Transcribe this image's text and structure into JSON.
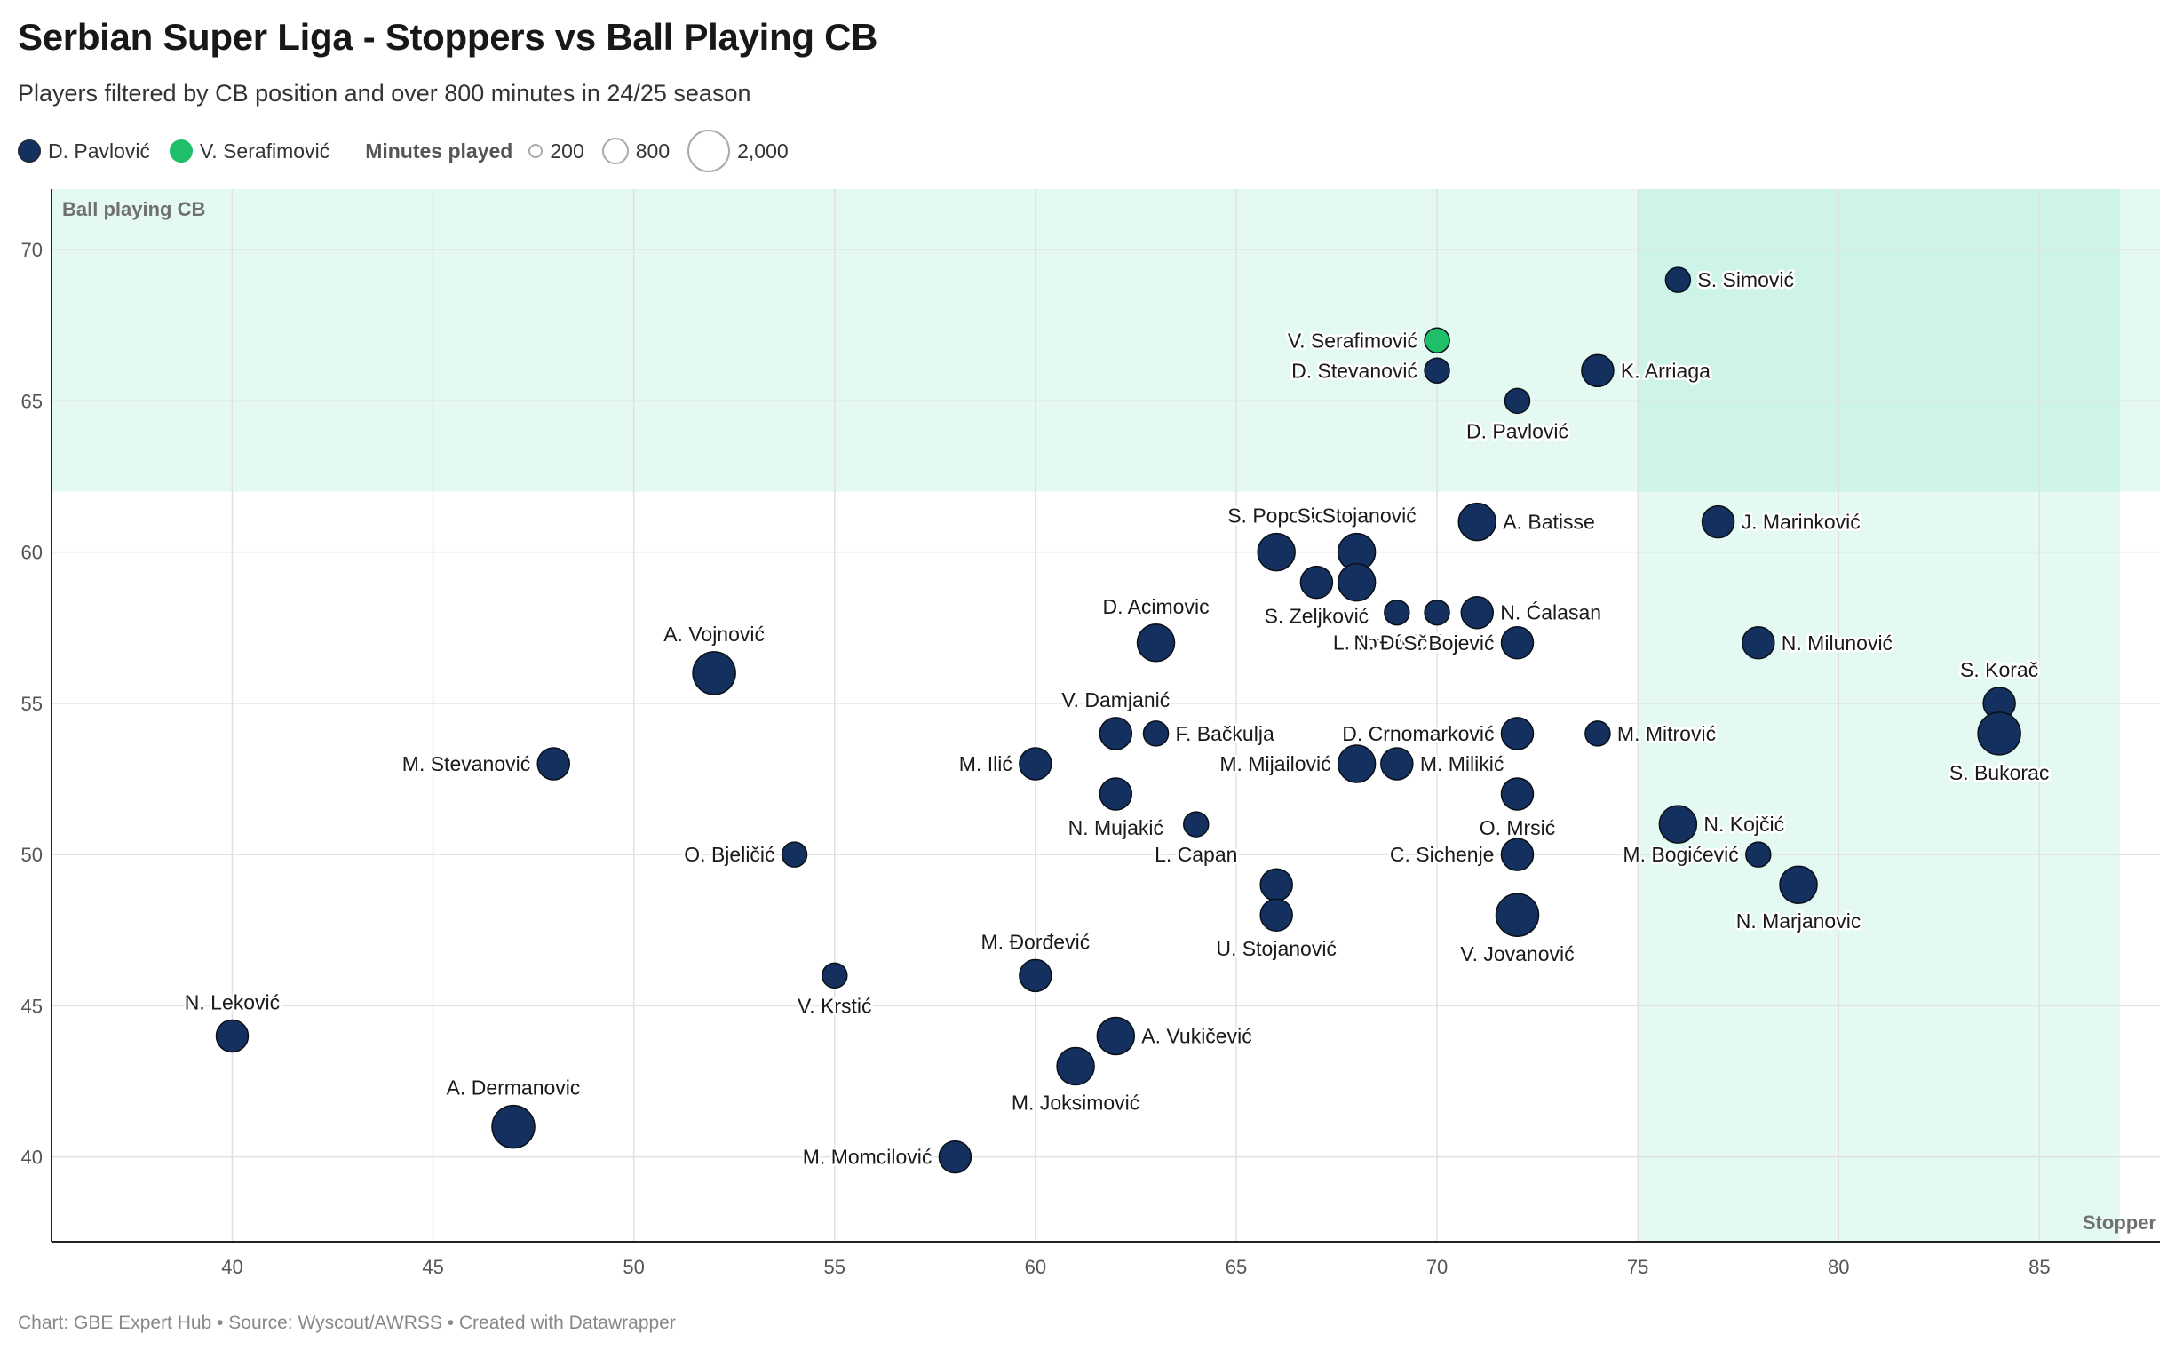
{
  "title": "Serbian Super Liga - Stoppers vs Ball Playing CB",
  "subtitle": "Players filtered by CB position and over 800 minutes in 24/25 season",
  "legend": {
    "players": [
      {
        "name": "D. Pavlović",
        "color": "#13305e"
      },
      {
        "name": "V. Serafimović",
        "color": "#1fbf6a"
      }
    ],
    "size_title": "Minutes played",
    "sizes": [
      {
        "label": "200",
        "minutes": 200
      },
      {
        "label": "800",
        "minutes": 800
      },
      {
        "label": "2,000",
        "minutes": 2000
      }
    ]
  },
  "footer": "Chart: GBE Expert Hub • Source: Wyscout/AWRSS • Created with Datawrapper",
  "chart_data": {
    "type": "scatter",
    "xlabel": "",
    "ylabel": "",
    "xlim": [
      35.5,
      88
    ],
    "ylim": [
      37.2,
      72
    ],
    "xticks": [
      40,
      45,
      50,
      55,
      60,
      65,
      70,
      75,
      80,
      85
    ],
    "yticks": [
      40,
      45,
      50,
      55,
      60,
      65,
      70
    ],
    "grid": true,
    "colors": {
      "default": "#13305e",
      "highlight": "#1fbf6a",
      "zone": "#e4f9f2",
      "zone_overlap": "#cef3e8"
    },
    "zones": [
      {
        "label": "Ball playing CB",
        "y_from": 62,
        "y_to": 72
      },
      {
        "label": "Stopper",
        "x_from": 75,
        "x_to": 87
      }
    ],
    "points": [
      {
        "name": "S. Simović",
        "x": 76,
        "y": 69,
        "size": 1,
        "label_pos": "right"
      },
      {
        "name": "V. Serafimović",
        "x": 70,
        "y": 67,
        "size": 1,
        "label_pos": "left",
        "highlight": true
      },
      {
        "name": "D. Stevanović",
        "x": 70,
        "y": 66,
        "size": 1,
        "label_pos": "left"
      },
      {
        "name": "K. Arriaga",
        "x": 74,
        "y": 66,
        "size": 2,
        "label_pos": "right"
      },
      {
        "name": "D. Pavlović",
        "x": 72,
        "y": 65,
        "size": 1,
        "label_pos": "below"
      },
      {
        "name": "S. Popovic",
        "x": 66,
        "y": 60,
        "size": 3,
        "label_pos": "above"
      },
      {
        "name": "S. Stojanović",
        "x": 68,
        "y": 60,
        "size": 3,
        "label_pos": "above"
      },
      {
        "name": "A. Batisse",
        "x": 71,
        "y": 61,
        "size": 3,
        "label_pos": "right"
      },
      {
        "name": "J. Marinković",
        "x": 77,
        "y": 61,
        "size": 2,
        "label_pos": "right"
      },
      {
        "name": "S. Zeljković",
        "x": 67,
        "y": 59,
        "size": 2,
        "label_pos": "below"
      },
      {
        "name": "",
        "x": 68,
        "y": 59,
        "size": 3,
        "label_pos": "none"
      },
      {
        "name": "L. Jović",
        "x": 69,
        "y": 58,
        "size": 1,
        "label_pos": "belowleft"
      },
      {
        "name": "N. Đuričić",
        "x": 70,
        "y": 58,
        "size": 1,
        "label_pos": "belowleft"
      },
      {
        "name": "N. Ćalasan",
        "x": 71,
        "y": 58,
        "size": 2,
        "label_pos": "right"
      },
      {
        "name": "S. Bojević",
        "x": 72,
        "y": 57,
        "size": 2,
        "label_pos": "left"
      },
      {
        "name": "N. Milunović",
        "x": 78,
        "y": 57,
        "size": 2,
        "label_pos": "right"
      },
      {
        "name": "D. Acimovic",
        "x": 63,
        "y": 57,
        "size": 3,
        "label_pos": "above"
      },
      {
        "name": "A. Vojnović",
        "x": 52,
        "y": 56,
        "size": 4,
        "label_pos": "above"
      },
      {
        "name": "S. Korač",
        "x": 84,
        "y": 55,
        "size": 2,
        "label_pos": "above"
      },
      {
        "name": "S. Bukorac",
        "x": 84,
        "y": 54,
        "size": 4,
        "label_pos": "below"
      },
      {
        "name": "V. Damjanić",
        "x": 62,
        "y": 54,
        "size": 2,
        "label_pos": "above"
      },
      {
        "name": "F. Bačkulja",
        "x": 63,
        "y": 54,
        "size": 1,
        "label_pos": "right"
      },
      {
        "name": "D. Crnomarković",
        "x": 72,
        "y": 54,
        "size": 2,
        "label_pos": "left"
      },
      {
        "name": "M. Mitrović",
        "x": 74,
        "y": 54,
        "size": 1,
        "label_pos": "right"
      },
      {
        "name": "M. Stevanović",
        "x": 48,
        "y": 53,
        "size": 2,
        "label_pos": "left"
      },
      {
        "name": "M. Ilić",
        "x": 60,
        "y": 53,
        "size": 2,
        "label_pos": "left"
      },
      {
        "name": "M. Mijailović",
        "x": 68,
        "y": 53,
        "size": 3,
        "label_pos": "left"
      },
      {
        "name": "M. Milikić",
        "x": 69,
        "y": 53,
        "size": 2,
        "label_pos": "right"
      },
      {
        "name": "N. Mujakić",
        "x": 62,
        "y": 52,
        "size": 2,
        "label_pos": "below"
      },
      {
        "name": "O. Mrsić",
        "x": 72,
        "y": 52,
        "size": 2,
        "label_pos": "below"
      },
      {
        "name": "L. Capan",
        "x": 64,
        "y": 51,
        "size": 1,
        "label_pos": "below"
      },
      {
        "name": "N. Kojčić",
        "x": 76,
        "y": 51,
        "size": 3,
        "label_pos": "right"
      },
      {
        "name": "O. Bjeličić",
        "x": 54,
        "y": 50,
        "size": 1,
        "label_pos": "left"
      },
      {
        "name": "C. Sichenje",
        "x": 72,
        "y": 50,
        "size": 2,
        "label_pos": "left"
      },
      {
        "name": "M. Bogićević",
        "x": 78,
        "y": 50,
        "size": 1,
        "label_pos": "left"
      },
      {
        "name": "N. Marjanovic",
        "x": 79,
        "y": 49,
        "size": 3,
        "label_pos": "below"
      },
      {
        "name": "",
        "x": 66,
        "y": 49,
        "size": 2,
        "label_pos": "none"
      },
      {
        "name": "U. Stojanović",
        "x": 66,
        "y": 48,
        "size": 2,
        "label_pos": "below"
      },
      {
        "name": "V. Jovanović",
        "x": 72,
        "y": 48,
        "size": 4,
        "label_pos": "below"
      },
      {
        "name": "M. Đorđević",
        "x": 60,
        "y": 46,
        "size": 2,
        "label_pos": "above"
      },
      {
        "name": "V. Krstić",
        "x": 55,
        "y": 46,
        "size": 1,
        "label_pos": "below"
      },
      {
        "name": "N. Leković",
        "x": 40,
        "y": 44,
        "size": 2,
        "label_pos": "above"
      },
      {
        "name": "A. Vukičević",
        "x": 62,
        "y": 44,
        "size": 3,
        "label_pos": "right"
      },
      {
        "name": "M. Joksimović",
        "x": 61,
        "y": 43,
        "size": 3,
        "label_pos": "below"
      },
      {
        "name": "A. Dermanovic",
        "x": 47,
        "y": 41,
        "size": 4,
        "label_pos": "above"
      },
      {
        "name": "M. Momcilović",
        "x": 58,
        "y": 40,
        "size": 2,
        "label_pos": "left"
      }
    ]
  }
}
